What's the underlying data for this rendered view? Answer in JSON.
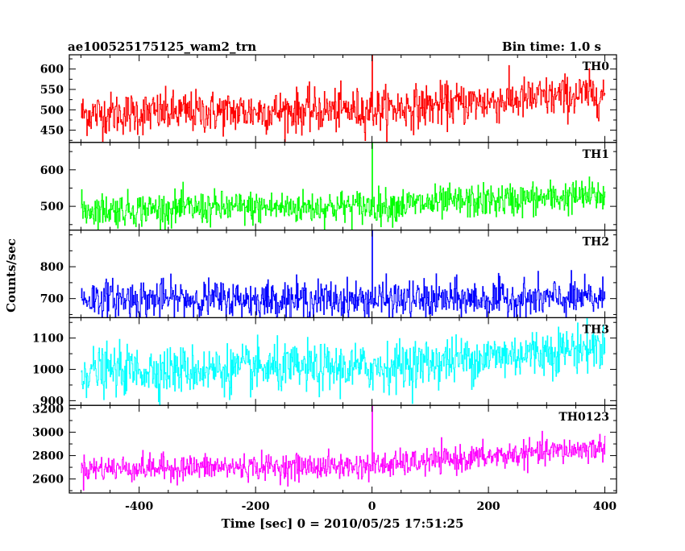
{
  "chart_data": {
    "type": "line",
    "title": "ae100525175125_wam2_trn",
    "subtitle": "Bin time: 1.0 s",
    "xlabel": "Time [sec] 0 = 2010/05/25 17:51:25",
    "ylabel": "Counts/sec",
    "xlim": [
      -520,
      420
    ],
    "x_ticks": [
      -400,
      -200,
      0,
      200,
      400
    ],
    "grid": false,
    "panels": [
      {
        "name": "TH0",
        "color": "#ff0000",
        "ylim": [
          420,
          635
        ],
        "y_ticks": [
          450,
          500,
          550,
          600
        ],
        "trend": [
          [
            -500,
            490
          ],
          [
            0,
            500
          ],
          [
            400,
            540
          ]
        ],
        "noise": 26,
        "spike": {
          "x": 0,
          "y": 635
        }
      },
      {
        "name": "TH1",
        "color": "#00ff00",
        "ylim": [
          435,
          675
        ],
        "y_ticks": [
          500,
          600
        ],
        "trend": [
          [
            -500,
            490
          ],
          [
            0,
            500
          ],
          [
            400,
            530
          ]
        ],
        "noise": 23,
        "spike": {
          "x": 0,
          "y": 675
        }
      },
      {
        "name": "TH2",
        "color": "#0000ff",
        "ylim": [
          640,
          915
        ],
        "y_ticks": [
          700,
          800
        ],
        "trend": [
          [
            -500,
            700
          ],
          [
            0,
            695
          ],
          [
            400,
            700
          ]
        ],
        "noise": 30,
        "spike": {
          "x": 0,
          "y": 915
        }
      },
      {
        "name": "TH3",
        "color": "#00ffff",
        "ylim": [
          885,
          1165
        ],
        "y_ticks": [
          900,
          1000,
          1100
        ],
        "trend": [
          [
            -500,
            995
          ],
          [
            0,
            1005
          ],
          [
            400,
            1075
          ]
        ],
        "noise": 38,
        "spike": null
      },
      {
        "name": "TH0123",
        "color": "#ff00ff",
        "ylim": [
          2480,
          3230
        ],
        "y_ticks": [
          2600,
          2800,
          3000,
          3200
        ],
        "trend": [
          [
            -500,
            2690
          ],
          [
            0,
            2710
          ],
          [
            400,
            2870
          ]
        ],
        "noise": 55,
        "spike": {
          "x": 0,
          "y": 3230
        }
      }
    ]
  }
}
